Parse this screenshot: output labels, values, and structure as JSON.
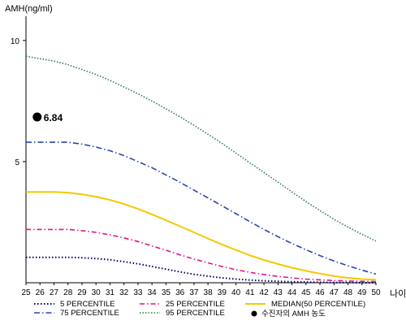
{
  "chart_data": {
    "type": "line",
    "title": "",
    "ylabel": "AMH(ng/ml)",
    "xlabel": "나이",
    "xlim": [
      25,
      50
    ],
    "ylim": [
      0,
      11
    ],
    "x_ticks": [
      25,
      26,
      27,
      28,
      29,
      30,
      31,
      32,
      33,
      34,
      35,
      36,
      37,
      38,
      39,
      40,
      41,
      42,
      43,
      44,
      45,
      46,
      47,
      48,
      49,
      50
    ],
    "y_ticks": [
      5,
      10
    ],
    "x": [
      25,
      26,
      27,
      28,
      29,
      30,
      31,
      32,
      33,
      34,
      35,
      36,
      37,
      38,
      39,
      40,
      41,
      42,
      43,
      44,
      45,
      46,
      47,
      48,
      49,
      50
    ],
    "legend_position": "bottom",
    "series": [
      {
        "name": "5 PERCENTILE",
        "color": "#000066",
        "dash": "1.5,2.5",
        "width": 2,
        "values": [
          1.05,
          1.05,
          1.05,
          1.05,
          1.03,
          1.0,
          0.95,
          0.87,
          0.78,
          0.67,
          0.56,
          0.45,
          0.35,
          0.27,
          0.2,
          0.15,
          0.11,
          0.08,
          0.06,
          0.04,
          0.03,
          0.02,
          0.01,
          0.01,
          0.0,
          0.0
        ]
      },
      {
        "name": "25 PERCENTILE",
        "color": "#e0158a",
        "dash": "6,3,1.5,3",
        "width": 1.6,
        "values": [
          2.2,
          2.2,
          2.2,
          2.2,
          2.15,
          2.08,
          1.98,
          1.85,
          1.7,
          1.52,
          1.34,
          1.15,
          0.98,
          0.82,
          0.67,
          0.54,
          0.43,
          0.34,
          0.26,
          0.2,
          0.15,
          0.12,
          0.09,
          0.07,
          0.06,
          0.05
        ]
      },
      {
        "name": "MEDIAN(50 PERCENTILE)",
        "color": "#f5c800",
        "dash": "",
        "width": 2,
        "values": [
          3.75,
          3.75,
          3.75,
          3.72,
          3.65,
          3.55,
          3.42,
          3.25,
          3.05,
          2.82,
          2.58,
          2.33,
          2.08,
          1.82,
          1.58,
          1.35,
          1.13,
          0.94,
          0.77,
          0.62,
          0.49,
          0.38,
          0.28,
          0.2,
          0.15,
          0.12
        ]
      },
      {
        "name": "75 PERCENTILE",
        "color": "#2a45b5",
        "dash": "7,3,1.5,3",
        "width": 1.6,
        "values": [
          5.8,
          5.8,
          5.8,
          5.8,
          5.72,
          5.6,
          5.45,
          5.25,
          5.0,
          4.75,
          4.45,
          4.15,
          3.82,
          3.5,
          3.18,
          2.85,
          2.52,
          2.2,
          1.9,
          1.62,
          1.36,
          1.12,
          0.9,
          0.7,
          0.52,
          0.36
        ]
      },
      {
        "name": "95 PERCENTILE",
        "color": "#2e7d4f",
        "dash": "1.5,2",
        "width": 1.6,
        "values": [
          9.35,
          9.25,
          9.15,
          9.0,
          8.8,
          8.6,
          8.35,
          8.08,
          7.8,
          7.5,
          7.18,
          6.85,
          6.5,
          6.13,
          5.75,
          5.35,
          4.95,
          4.55,
          4.15,
          3.75,
          3.35,
          2.98,
          2.62,
          2.3,
          2.0,
          1.72
        ]
      }
    ],
    "point": {
      "name": "수진자의 AMH 농도",
      "x": 25.8,
      "y": 6.84,
      "label": "6.84",
      "color": "#000000"
    }
  }
}
